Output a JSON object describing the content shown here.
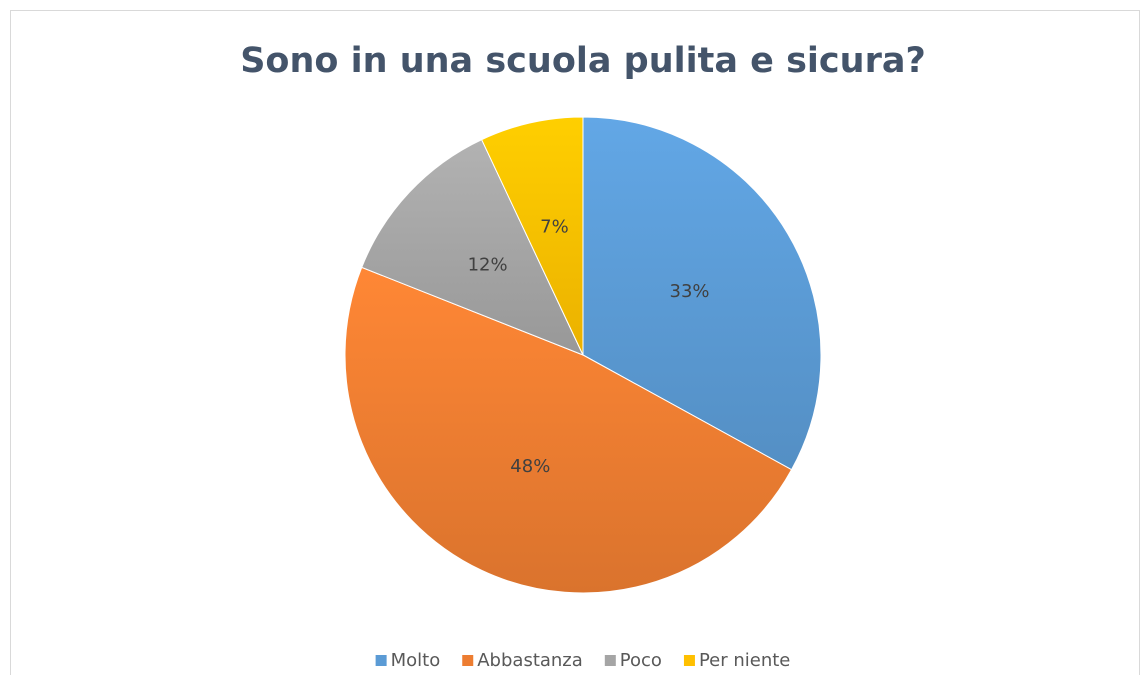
{
  "chart_data": {
    "type": "pie",
    "title": "Sono in una scuola pulita e sicura?",
    "categories": [
      "Molto",
      "Abbastanza",
      "Poco",
      "Per niente"
    ],
    "values": [
      33,
      48,
      12,
      7
    ],
    "value_labels": [
      "33%",
      "48%",
      "12%",
      "7%"
    ],
    "colors": [
      "#5b9bd5",
      "#ed7d31",
      "#a5a5a5",
      "#ffc000"
    ],
    "legend": "bottom"
  }
}
